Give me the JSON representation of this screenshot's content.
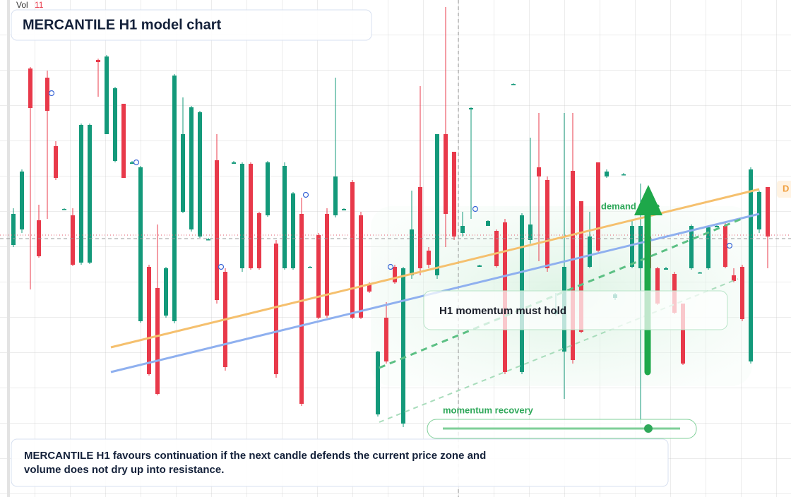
{
  "header": {
    "vol_label": "Vol",
    "vol_value": 11,
    "title": "MERCANTILE H1 model chart"
  },
  "annotations": {
    "demand_zone": "demand zone",
    "level_tag": "D",
    "momentum_box": "H1 momentum must hold",
    "momentum_recovery": "momentum recovery",
    "note": "MERCANTILE H1 favours continuation if the next candle defends the current price zone and volume does not dry up into resistance."
  },
  "chart_data": {
    "type": "candlestick",
    "ylim": [
      0,
      704
    ],
    "up_color": "#13997a",
    "down_color": "#e8394a",
    "open": [
      357,
      379,
      607,
      392,
      594,
      497,
      407,
      399,
      332,
      332,
      619,
      514,
      476,
      557,
      472,
      249,
      326,
      296,
      257,
      249,
      404,
      379,
      369,
      364,
      477,
      319,
      472,
      324,
      472,
      402,
      399,
      359,
      324,
      324,
      401,
      325,
      371,
      401,
      399,
      406,
      446,
      399,
      301,
      117,
      254,
      326,
      104,
      314,
      439,
      349,
      314,
      514,
      489,
      374,
      549,
      326,
      384,
      377,
      389,
      584,
      177,
      364,
      467,
      449,
      259,
      206,
      462,
      419,
      326,
      474,
      454,
      282,
      456,
      326,
      324,
      369,
      324,
      322,
      316,
      274,
      324,
      317,
      324,
      382,
      384,
      314,
      326,
      192,
      379,
      439
    ],
    "high": [
      409,
      464,
      609,
      414,
      604,
      504,
      409,
      409,
      529,
      529,
      621,
      626,
      581,
      557,
      476,
      469,
      329,
      386,
      326,
      599,
      566,
      554,
      547,
      367,
      514,
      324,
      476,
      474,
      474,
      404,
      476,
      364,
      474,
      432,
      424,
      327,
      374,
      409,
      594,
      409,
      449,
      404,
      304,
      207,
      276,
      329,
      326,
      434,
      582,
      354,
      514,
      694,
      489,
      404,
      552,
      329,
      392,
      379,
      394,
      586,
      402,
      509,
      544,
      454,
      289,
      544,
      544,
      419,
      404,
      474,
      464,
      289,
      459,
      392,
      444,
      374,
      326,
      326,
      319,
      274,
      386,
      319,
      384,
      386,
      389,
      324,
      329,
      467,
      434,
      439
    ],
    "low": [
      354,
      374,
      294,
      339,
      394,
      449,
      407,
      327,
      329,
      330,
      567,
      514,
      474,
      452,
      472,
      247,
      172,
      144,
      254,
      246,
      402,
      376,
      367,
      364,
      274,
      179,
      472,
      319,
      322,
      322,
      397,
      169,
      322,
      322,
      129,
      325,
      252,
      254,
      396,
      406,
      252,
      252,
      289,
      114,
      189,
      302,
      99,
      309,
      314,
      324,
      309,
      354,
      364,
      369,
      394,
      326,
      384,
      325,
      174,
      584,
      174,
      359,
      334,
      319,
      257,
      139,
      189,
      232,
      324,
      347,
      452,
      279,
      456,
      324,
      104,
      319,
      272,
      322,
      259,
      187,
      322,
      317,
      322,
      382,
      324,
      304,
      249,
      189,
      374,
      324
    ],
    "close": [
      401,
      461,
      551,
      341,
      547,
      452,
      408,
      329,
      527,
      527,
      616,
      624,
      579,
      452,
      474,
      467,
      174,
      146,
      324,
      597,
      514,
      552,
      545,
      365,
      279,
      184,
      474,
      472,
      324,
      324,
      474,
      174,
      469,
      430,
      132,
      326,
      254,
      257,
      454,
      408,
      254,
      254,
      291,
      206,
      192,
      304,
      324,
      379,
      324,
      329,
      514,
      401,
      369,
      384,
      551,
      328,
      391,
      327,
      177,
      585,
      399,
      386,
      454,
      324,
      264,
      326,
      194,
      234,
      369,
      349,
      461,
      287,
      457,
      384,
      384,
      324,
      274,
      324,
      261,
      189,
      384,
      318,
      382,
      384,
      326,
      306,
      252,
      464,
      432,
      369
    ]
  }
}
